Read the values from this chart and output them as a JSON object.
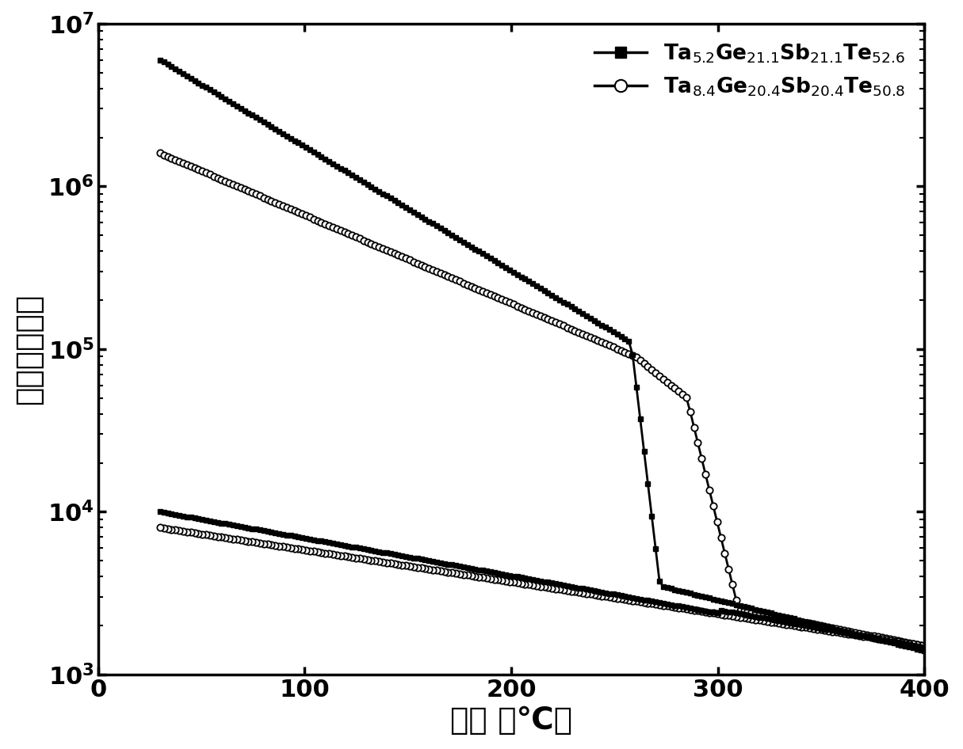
{
  "xlabel": "温度 （℃）",
  "ylabel": "电阻（欧姆）",
  "xlim": [
    0,
    400
  ],
  "ylim_log": [
    3,
    7
  ],
  "background_color": "#ffffff",
  "line_color": "#000000",
  "legend1_label": "Ta$_{5.2}$Ge$_{21.1}$Sb$_{21.1}$Te$_{52.6}$",
  "legend2_label": "Ta$_{8.4}$Ge$_{20.4}$Sb$_{20.4}$Te$_{50.8}$",
  "series1_marker": "s",
  "series2_marker": "o",
  "xlabel_fontsize": 28,
  "ylabel_fontsize": 28,
  "tick_fontsize": 22,
  "legend_fontsize": 19
}
